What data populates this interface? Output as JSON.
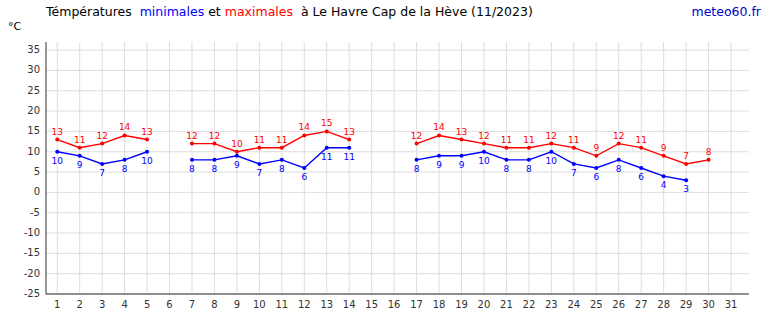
{
  "chart_data": {
    "type": "line",
    "title": "Témpératures  minimales et maximales  à Le Havre Cap de la Hève (11/2023)",
    "y_label": "°C",
    "annotations": [
      {
        "text": "meteo60.fr",
        "color": "#0000cd"
      }
    ],
    "x": [
      1,
      2,
      3,
      4,
      5,
      6,
      7,
      8,
      9,
      10,
      11,
      12,
      13,
      14,
      15,
      16,
      17,
      18,
      19,
      20,
      21,
      22,
      23,
      24,
      25,
      26,
      27,
      28,
      29,
      30,
      31
    ],
    "series": [
      {
        "name": "maximales",
        "color": "#ff0000",
        "marker": "circle",
        "line_style": "solid",
        "values": [
          13,
          11,
          12,
          14,
          13,
          null,
          12,
          12,
          10,
          11,
          11,
          14,
          15,
          13,
          null,
          null,
          12,
          14,
          13,
          12,
          11,
          11,
          12,
          11,
          9,
          12,
          11,
          9,
          7,
          8,
          null
        ]
      },
      {
        "name": "minimales",
        "color": "#0000ff",
        "marker": "circle",
        "line_style": "solid",
        "values": [
          10,
          9,
          7,
          8,
          10,
          null,
          8,
          8,
          9,
          7,
          8,
          6,
          11,
          11,
          null,
          null,
          8,
          9,
          9,
          10,
          8,
          8,
          10,
          7,
          6,
          8,
          6,
          4,
          3,
          null,
          null
        ]
      }
    ],
    "xlim": [
      0.5,
      31.8
    ],
    "ylim": [
      -25,
      37
    ],
    "xticks": [
      1,
      2,
      3,
      4,
      5,
      6,
      7,
      8,
      9,
      10,
      11,
      12,
      13,
      14,
      15,
      16,
      17,
      18,
      19,
      20,
      21,
      22,
      23,
      24,
      25,
      26,
      27,
      28,
      29,
      30,
      31
    ],
    "yticks": [
      -25,
      -20,
      -15,
      -10,
      -5,
      0,
      5,
      10,
      15,
      20,
      25,
      30,
      35
    ],
    "grid": true,
    "data_labels": true
  }
}
